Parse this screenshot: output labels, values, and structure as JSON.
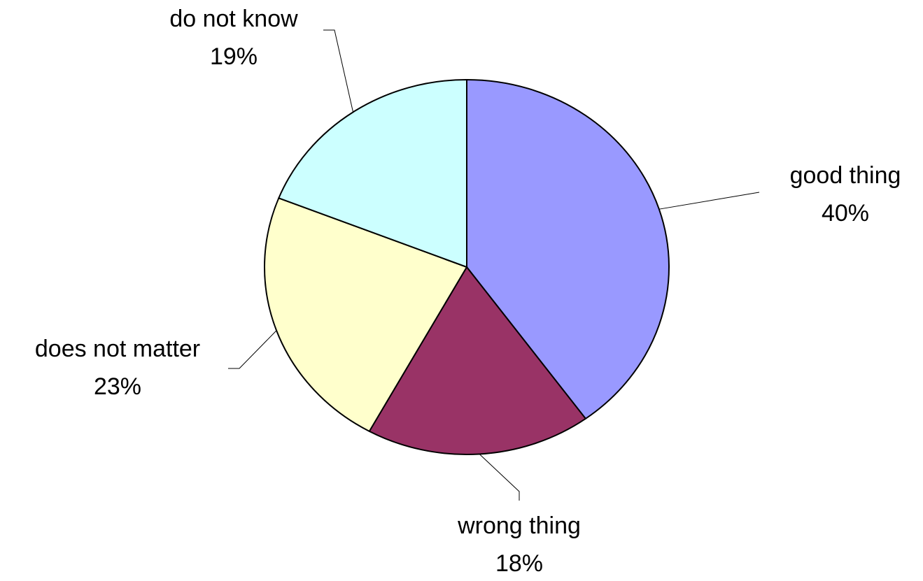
{
  "chart_data": {
    "type": "pie",
    "title": "",
    "start_angle_deg": 0,
    "direction": "clockwise",
    "slices": [
      {
        "label": "good thing",
        "percent_label": "40%",
        "value": 40,
        "color": "#9999ff"
      },
      {
        "label": "wrong thing",
        "percent_label": "18%",
        "value": 18,
        "color": "#993366"
      },
      {
        "label": "does not matter",
        "percent_label": "23%",
        "value": 23,
        "color": "#ffffcc"
      },
      {
        "label": "do not know",
        "percent_label": "19%",
        "value": 19,
        "color": "#ccffff"
      }
    ],
    "legend": "none",
    "outline_color": "#000000"
  }
}
